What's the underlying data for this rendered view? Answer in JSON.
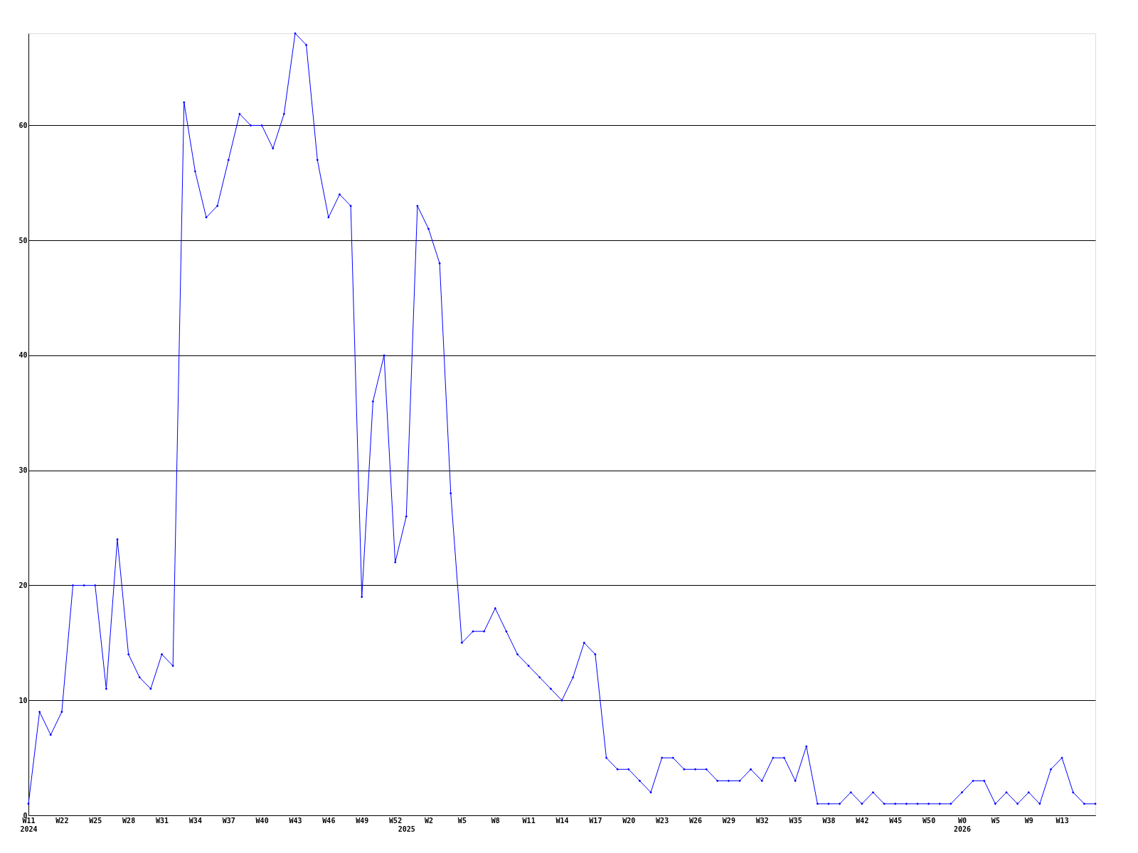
{
  "chart_data": {
    "type": "line",
    "categories": [
      "W11\n2024",
      null,
      null,
      "W22",
      null,
      null,
      "W25",
      null,
      null,
      "W28",
      null,
      null,
      "W31",
      null,
      null,
      "W34",
      null,
      null,
      "W37",
      null,
      null,
      "W40",
      null,
      null,
      "W43",
      null,
      null,
      "W46",
      null,
      null,
      "W49",
      null,
      null,
      "W52",
      "\n2025",
      null,
      "W2",
      null,
      null,
      "W5",
      null,
      null,
      "W8",
      null,
      null,
      "W11",
      null,
      null,
      "W14",
      null,
      null,
      "W17",
      null,
      null,
      "W20",
      null,
      null,
      "W23",
      null,
      null,
      "W26",
      null,
      null,
      "W29",
      null,
      null,
      "W32",
      null,
      null,
      "W35",
      null,
      null,
      "W38",
      null,
      null,
      "W42",
      null,
      null,
      "W45",
      null,
      null,
      "W50",
      null,
      null,
      "W0\n2026",
      null,
      null,
      "W5",
      null,
      null,
      "W9",
      null,
      null,
      "W13",
      null,
      null,
      null
    ],
    "series": [
      {
        "color": "#0000ff",
        "values": [
          1,
          9,
          7,
          9,
          20,
          20,
          20,
          11,
          24,
          14,
          12,
          11,
          14,
          13,
          62,
          56,
          52,
          53,
          57,
          61,
          60,
          60,
          58,
          61,
          68,
          67,
          57,
          52,
          54,
          53,
          19,
          36,
          40,
          22,
          26,
          53,
          51,
          48,
          28,
          15,
          16,
          16,
          18,
          16,
          14,
          13,
          12,
          11,
          10,
          12,
          15,
          14,
          5,
          4,
          4,
          3,
          2,
          5,
          5,
          4,
          4,
          4,
          3,
          3,
          3,
          4,
          3,
          5,
          5,
          3,
          6,
          1,
          1,
          1,
          2,
          1,
          2,
          1,
          1,
          1,
          1,
          1,
          1,
          1,
          2,
          3,
          3,
          1,
          2,
          1,
          2,
          1,
          4,
          5,
          2,
          1,
          1
        ]
      }
    ],
    "ylim": [
      0,
      68
    ],
    "yticks": [
      0,
      10,
      20,
      30,
      40,
      50,
      60
    ],
    "grid": "y",
    "marker": "diamond",
    "line_style": "solid"
  }
}
